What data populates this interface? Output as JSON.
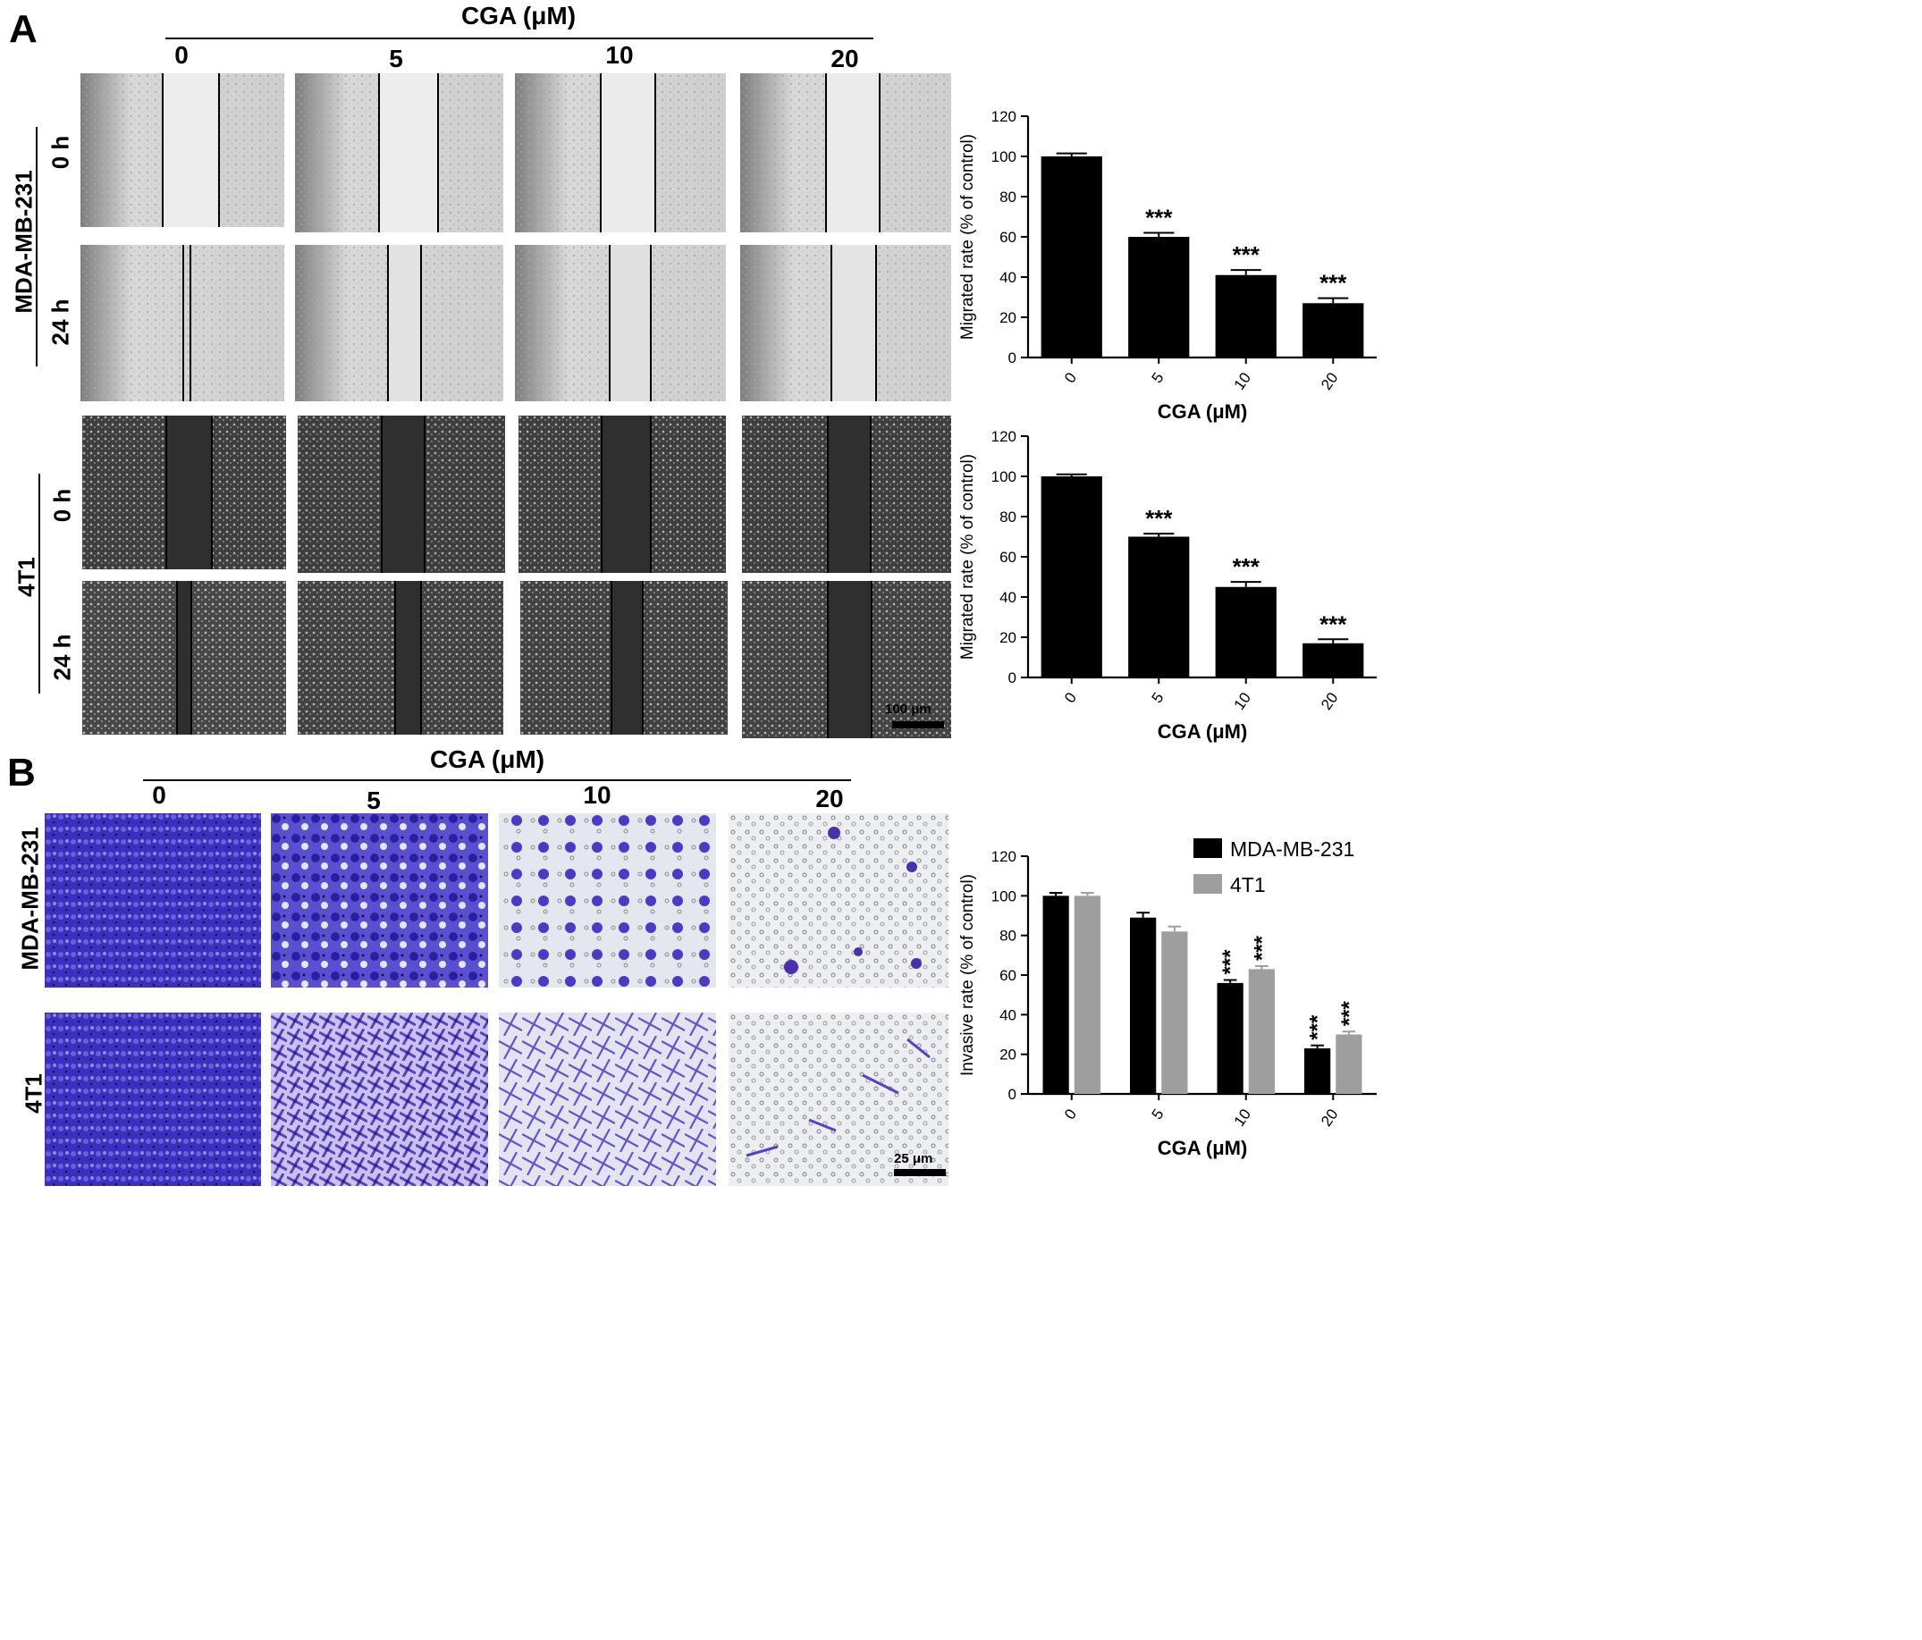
{
  "panelA": {
    "letter": "A",
    "header": "CGA (μM)",
    "columns": [
      "0",
      "5",
      "10",
      "20"
    ],
    "group1": {
      "label": "MDA-MB-231",
      "rows": [
        "0 h",
        "24 h"
      ]
    },
    "group2": {
      "label": "4T1",
      "rows": [
        "0 h",
        "24 h"
      ]
    },
    "scale_label": "100 μm"
  },
  "panelB": {
    "letter": "B",
    "header": "CGA (μM)",
    "columns": [
      "0",
      "5",
      "10",
      "20"
    ],
    "rows": [
      "MDA-MB-231",
      "4T1"
    ],
    "scale_label": "25 μm"
  },
  "colors": {
    "bar_black": "#000000",
    "bar_gray": "#9e9e9e",
    "wound_bg": "#e6e6e6",
    "wound_dark": "#2e2e2e",
    "stain_purple": "#3a2db8",
    "stain_light": "#e8eaf2"
  },
  "chart_data": [
    {
      "type": "bar",
      "categories": [
        "0",
        "5",
        "10",
        "20"
      ],
      "series": [
        {
          "values": [
            100,
            60,
            41,
            27
          ],
          "errors": [
            1.5,
            2,
            2.5,
            2.5
          ]
        }
      ],
      "annotations": [
        "",
        "***",
        "***",
        "***"
      ],
      "xlabel": "CGA (μM)",
      "ylabel": "Migrated rate (% of control)",
      "ylim": [
        0,
        120
      ],
      "yticks": [
        0,
        20,
        40,
        60,
        80,
        100,
        120
      ]
    },
    {
      "type": "bar",
      "categories": [
        "0",
        "5",
        "10",
        "20"
      ],
      "series": [
        {
          "values": [
            100,
            70,
            45,
            17
          ],
          "errors": [
            1,
            1.5,
            2.5,
            2
          ]
        }
      ],
      "annotations": [
        "",
        "***",
        "***",
        "***"
      ],
      "xlabel": "CGA (μM)",
      "ylabel": "Migrated rate (% of control)",
      "ylim": [
        0,
        120
      ],
      "yticks": [
        0,
        20,
        40,
        60,
        80,
        100,
        120
      ]
    },
    {
      "type": "bar",
      "categories": [
        "0",
        "5",
        "10",
        "20"
      ],
      "series": [
        {
          "name": "MDA-MB-231",
          "values": [
            100,
            89,
            56,
            23
          ],
          "errors": [
            1.5,
            2.5,
            1.5,
            1.5
          ]
        },
        {
          "name": "4T1",
          "values": [
            100,
            82,
            63,
            30
          ],
          "errors": [
            1.5,
            2.5,
            1.5,
            1.5
          ]
        }
      ],
      "annotations": [
        [
          "",
          ""
        ],
        [
          "",
          ""
        ],
        [
          "***",
          "***"
        ],
        [
          "***",
          "***"
        ]
      ],
      "legend": "top-right",
      "xlabel": "CGA (μM)",
      "ylabel": "Invasive rate (% of control)",
      "ylim": [
        0,
        120
      ],
      "yticks": [
        0,
        20,
        40,
        60,
        80,
        100,
        120
      ]
    }
  ]
}
